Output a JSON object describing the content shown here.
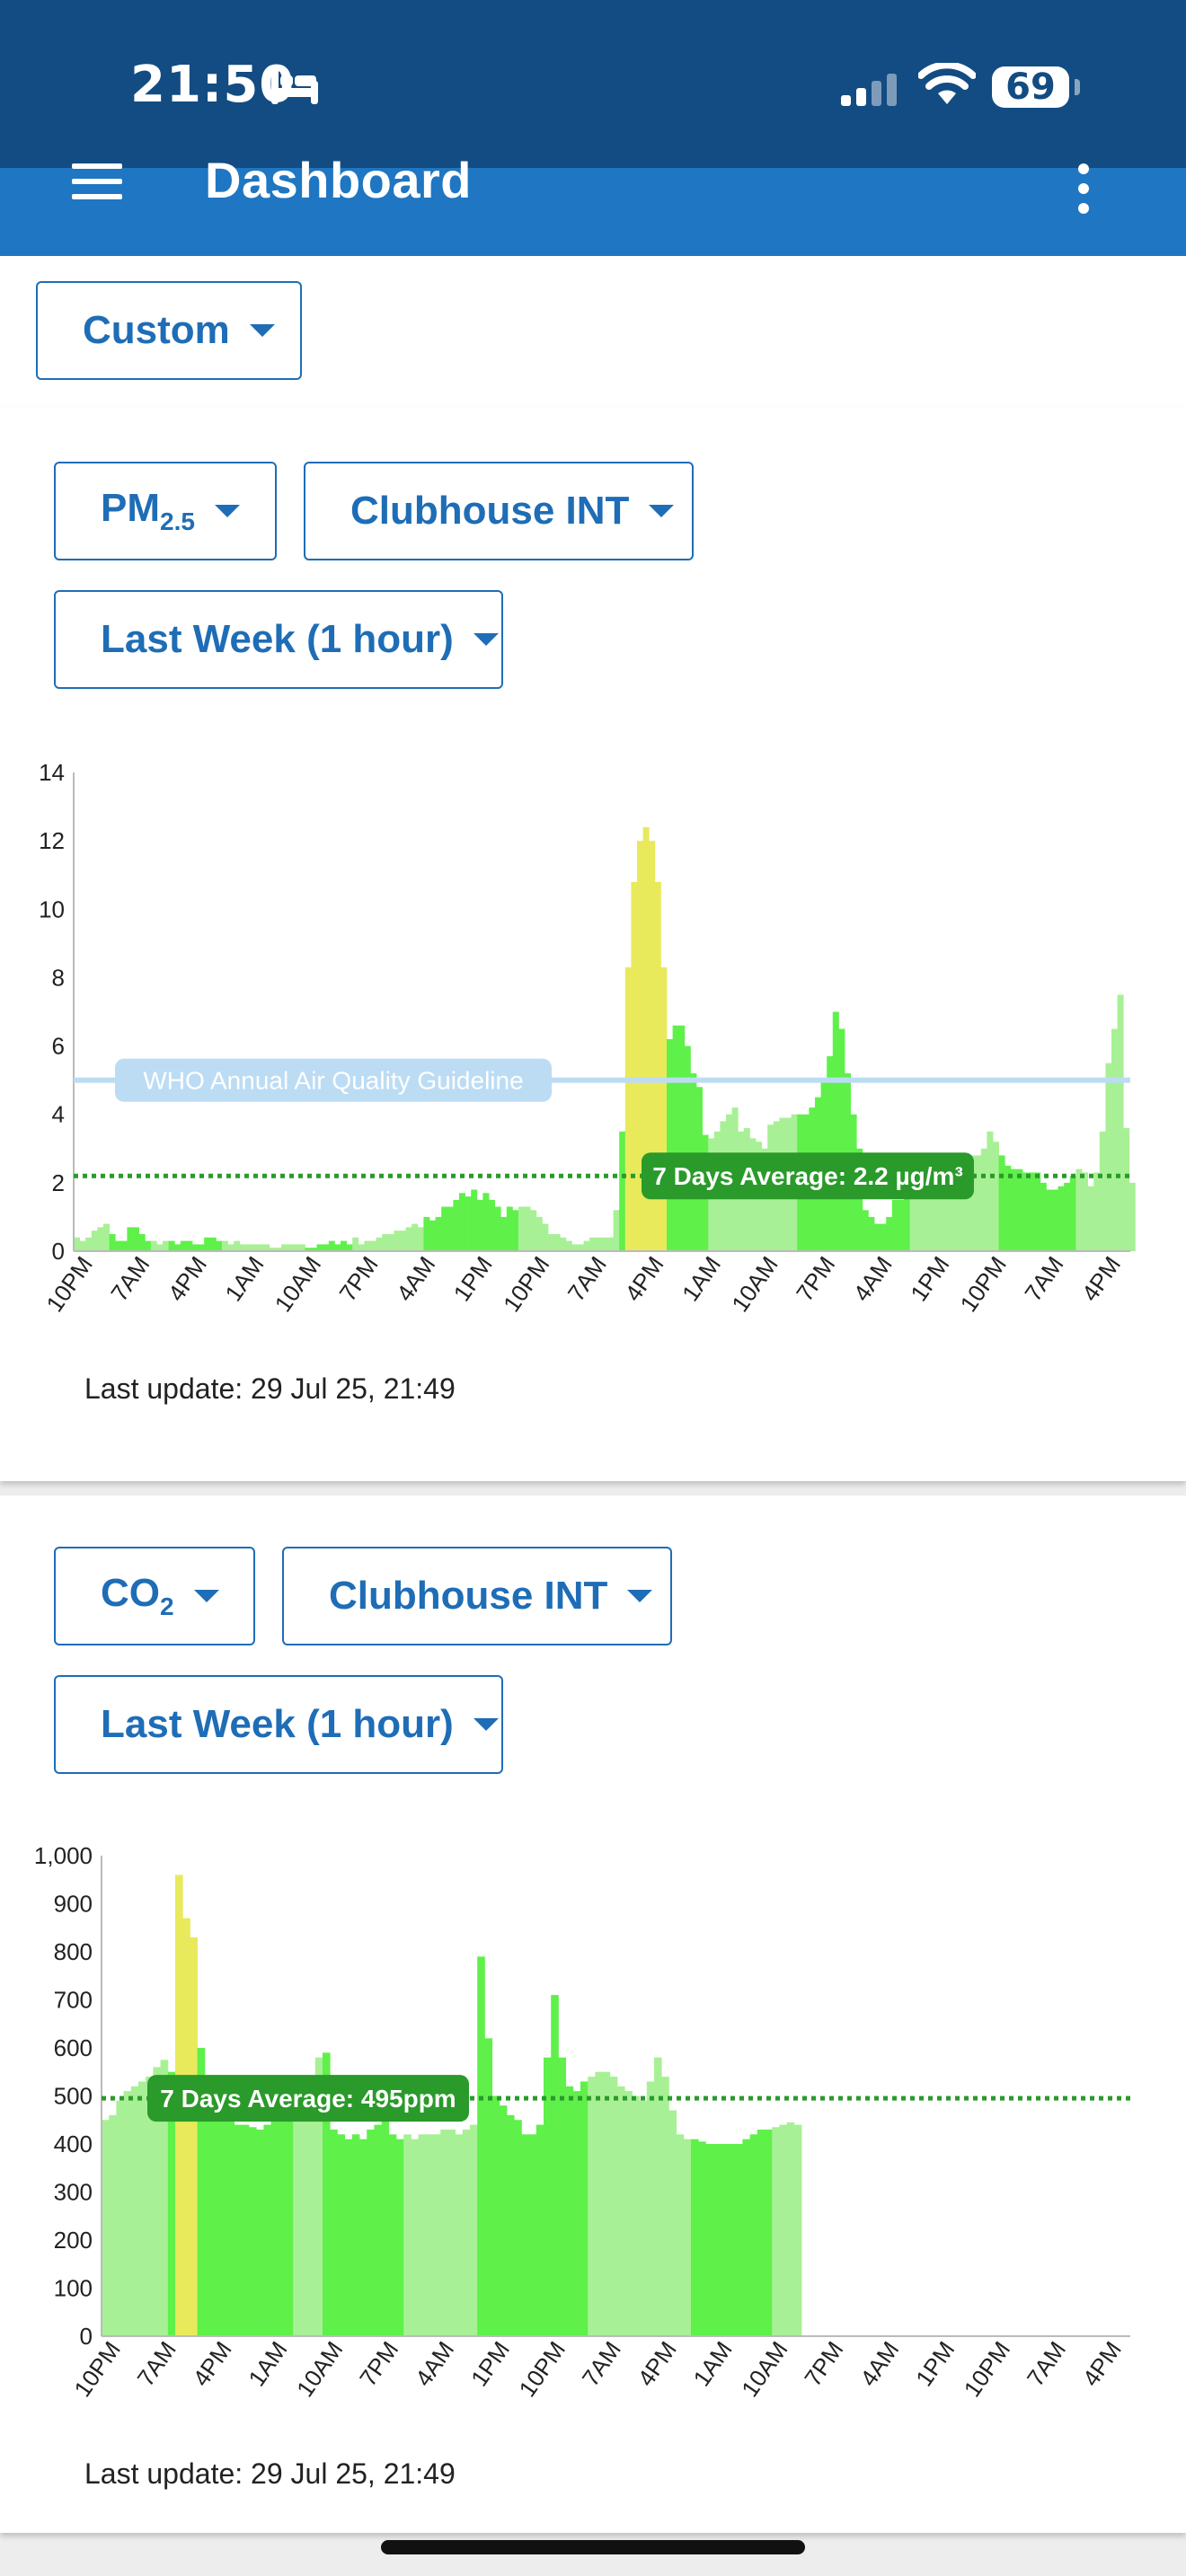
{
  "status_bar": {
    "time": "21:50",
    "battery": "69",
    "icons": [
      "bed-icon",
      "cellular-signal-icon",
      "wifi-icon",
      "battery-icon"
    ]
  },
  "app_bar": {
    "title": "Dashboard",
    "menu_icon": "hamburger-menu-icon",
    "more_icon": "more-vertical-icon"
  },
  "range_filter": {
    "label": "Custom"
  },
  "colors": {
    "accent": "#1e6db6",
    "app_bar": "#1f76c2",
    "status_bar": "#124c82",
    "good": "#5ff04a",
    "good_light": "#a8f095",
    "moderate": "#e8ea5c",
    "average": "#2a9a2a",
    "guideline": "#bcdcf4"
  },
  "pm_card": {
    "pollutant_label": "PM",
    "pollutant_sub": "2.5",
    "location": "Clubhouse INT",
    "period": "Last Week (1 hour)",
    "last_update": "Last update: 29 Jul 25, 21:49"
  },
  "co2_card": {
    "pollutant_label": "CO",
    "pollutant_sub": "2",
    "location": "Clubhouse INT",
    "period": "Last Week (1 hour)",
    "last_update": "Last update: 29 Jul 25, 21:49"
  },
  "chart_data": [
    {
      "type": "bar",
      "x_ticks": [
        "10PM",
        "7AM",
        "4PM",
        "1AM",
        "10AM",
        "7PM",
        "4AM",
        "1PM",
        "10PM",
        "7AM",
        "4PM",
        "1AM",
        "10AM",
        "7PM",
        "4AM",
        "1PM",
        "10PM",
        "7AM",
        "4PM"
      ],
      "y_ticks": [
        "0",
        "2",
        "4",
        "6",
        "8",
        "10",
        "12",
        "14"
      ],
      "ylim": [
        0,
        14
      ],
      "guideline": {
        "label": "WHO Annual Air Quality Guideline",
        "value": 5
      },
      "average": {
        "label": "7 Days Average: 2.2 µg/m³",
        "value": 2.2
      },
      "series": [
        {
          "values": [
            0.4,
            0.3,
            0.4,
            0.6,
            0.7,
            0.8,
            0.5,
            0.3,
            0.3,
            0.7,
            0.7,
            0.5,
            0.3,
            0.3,
            0.2,
            0.3,
            0.3,
            0.2,
            0.3,
            0.3,
            0.2,
            0.2,
            0.4,
            0.4,
            0.3,
            0.3,
            0.2,
            0.3,
            0.2,
            0.2,
            0.2,
            0.2,
            0.2,
            0.1,
            0.1,
            0.2,
            0.2,
            0.2,
            0.2,
            0.1,
            0.1,
            0.2,
            0.2,
            0.3,
            0.2,
            0.3,
            0.2,
            0.4,
            0.2,
            0.3,
            0.3,
            0.4,
            0.5,
            0.5,
            0.6,
            0.6,
            0.7,
            0.8,
            0.7,
            1.0,
            0.9,
            1.0,
            1.3,
            1.3,
            1.5,
            1.7,
            1.6,
            1.8,
            1.5,
            1.7,
            1.5,
            1.3,
            1.0,
            1.3,
            1.2,
            1.3,
            1.3,
            1.2,
            1.0,
            0.8,
            0.5,
            0.5,
            0.4,
            0.3,
            0.2,
            0.2,
            0.3,
            0.4,
            0.4,
            0.4,
            0.4,
            1.2,
            3.5,
            8.3,
            10.8,
            12.0,
            12.4,
            12.0,
            10.8,
            8.3,
            6.2,
            6.6,
            6.6,
            6.0,
            5.2,
            4.8,
            3.4,
            3.3,
            3.5,
            3.8,
            4.0,
            4.2,
            3.5,
            3.6,
            3.3,
            3.2,
            3.0,
            3.7,
            3.8,
            3.9,
            3.9,
            4.0,
            4.0,
            4.0,
            4.2,
            4.5,
            5.0,
            5.7,
            7.0,
            6.5,
            5.2,
            4.0,
            3.0,
            1.2,
            1.0,
            0.8,
            0.8,
            1.0,
            1.5,
            1.5,
            2.2,
            2.2,
            2.2,
            2.3,
            2.2,
            2.2,
            1.9,
            1.9,
            1.8,
            2.0,
            2.5,
            2.8,
            2.8,
            3.0,
            3.5,
            3.2,
            2.8,
            2.5,
            2.4,
            2.4,
            2.3,
            2.3,
            2.3,
            2.0,
            1.8,
            1.8,
            1.9,
            2.0,
            2.2,
            2.4,
            2.3,
            1.9,
            2.3,
            3.5,
            5.5,
            6.5,
            7.5,
            3.6,
            2.0
          ],
          "levels": "GGGGGGDDDDDDDGGGDDDDDDDDDGGGGGGGGGGGGGGDDDDDDDDGGGGGGGGGGGGDDDDDDDDDDDDDDDDGGGGGGGGGGGGGGGGGDYYYYYYYDDDDDDDGGGGGGGGGGGGGGGDDDDDDDDDDDDDDDDDDDGGGGGGGGGGGGGGGDDDDDDDDDDDDDGGGGGGGGGGGGGGGGGDDDDDDDDDDD"
        }
      ]
    },
    {
      "type": "bar",
      "x_ticks": [
        "10PM",
        "7AM",
        "4PM",
        "1AM",
        "10AM",
        "7PM",
        "4AM",
        "1PM",
        "10PM",
        "7AM",
        "4PM",
        "1AM",
        "10AM",
        "7PM",
        "4AM",
        "1PM",
        "10PM",
        "7AM",
        "4PM"
      ],
      "y_ticks": [
        "0",
        "100",
        "200",
        "300",
        "400",
        "500",
        "600",
        "700",
        "800",
        "900",
        "1,000"
      ],
      "ylim": [
        0,
        1000
      ],
      "average": {
        "label": "7 Days Average: 495ppm",
        "value": 495
      },
      "series": [
        {
          "values": [
            450,
            460,
            490,
            510,
            520,
            530,
            540,
            560,
            575,
            550,
            960,
            870,
            830,
            600,
            520,
            470,
            460,
            450,
            440,
            440,
            435,
            430,
            440,
            450,
            460,
            470,
            480,
            490,
            500,
            580,
            590,
            430,
            420,
            410,
            420,
            410,
            430,
            440,
            450,
            420,
            410,
            420,
            410,
            420,
            420,
            420,
            430,
            430,
            420,
            430,
            440,
            790,
            620,
            500,
            480,
            460,
            450,
            420,
            420,
            440,
            580,
            710,
            580,
            520,
            510,
            530,
            540,
            550,
            550,
            540,
            520,
            510,
            500,
            490,
            530,
            580,
            540,
            470,
            420,
            410,
            410,
            405,
            400,
            400,
            400,
            400,
            400,
            410,
            420,
            430,
            430,
            435,
            440,
            445,
            440
          ],
          "levels": "GGGGGGGGGDYYYDDDDDDDDDDDDDGGGGDDDDDDDDDDDGGGGGGGGGGDDDDDDDDDDDDDDDGGGGGGGGGGGGGGDDDDDDDDDDDGGGGGGGG"
        }
      ]
    }
  ]
}
